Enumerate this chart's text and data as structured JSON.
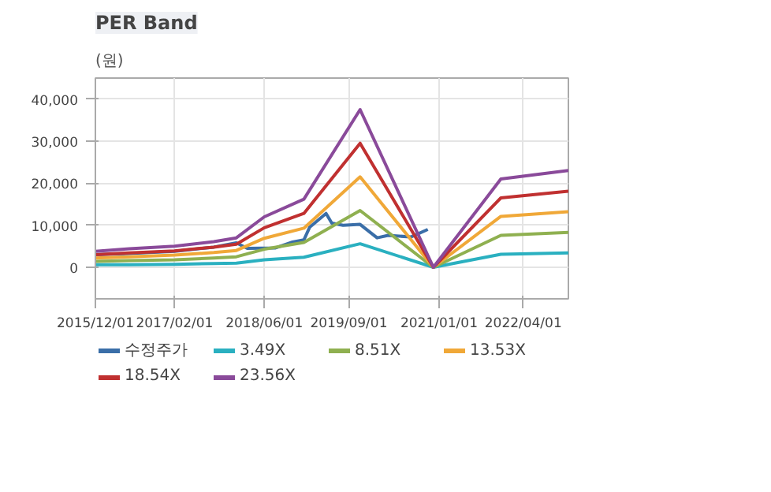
{
  "chart_data": {
    "type": "line",
    "title": "PER Band",
    "ylabel": "(원)",
    "x": [
      "2015-12-01",
      "2016-06-01",
      "2017-02-01",
      "2017-09-01",
      "2018-01-01",
      "2018-06-01",
      "2019-01-01",
      "2019-11-01",
      "2020-12-01",
      "2021-12-01",
      "2022-12-01"
    ],
    "series": [
      {
        "name": "수정주가",
        "color": "#3a6ea8",
        "x": [
          "2015-12-01",
          "2016-06-01",
          "2017-02-01",
          "2017-09-01",
          "2018-01-01",
          "2018-03-01",
          "2018-08-01",
          "2018-11-01",
          "2019-01-01",
          "2019-02-01",
          "2019-05-01",
          "2019-06-01",
          "2019-08-01",
          "2019-11-01",
          "2020-02-01",
          "2020-04-01",
          "2020-08-01",
          "2020-11-01"
        ],
        "values": [
          3000,
          3300,
          3800,
          4800,
          5800,
          4500,
          4600,
          6000,
          6500,
          9500,
          12800,
          10500,
          10000,
          10200,
          7000,
          7600,
          7200,
          9000
        ]
      },
      {
        "name": "3.49X",
        "color": "#2ab0c0",
        "values": [
          600,
          600,
          700,
          900,
          1000,
          1800,
          2400,
          5600,
          0,
          3100,
          3400
        ]
      },
      {
        "name": "8.51X",
        "color": "#8fb050",
        "values": [
          1400,
          1600,
          1800,
          2200,
          2500,
          4300,
          5900,
          13500,
          0,
          7600,
          8300
        ]
      },
      {
        "name": "13.53X",
        "color": "#f0a838",
        "values": [
          2200,
          2500,
          2900,
          3500,
          4000,
          6900,
          9300,
          21500,
          0,
          12100,
          13200
        ]
      },
      {
        "name": "18.54X",
        "color": "#c03030",
        "values": [
          3000,
          3400,
          3900,
          4800,
          5500,
          9400,
          12800,
          29500,
          0,
          16500,
          18100
        ]
      },
      {
        "name": "23.56X",
        "color": "#8a4a9a",
        "values": [
          3800,
          4400,
          5000,
          6100,
          7000,
          12000,
          16200,
          37500,
          0,
          21000,
          23000
        ]
      }
    ],
    "xlim": [
      "2015-12-01",
      "2022-12-01"
    ],
    "xticks": [
      {
        "value": "2015-12-01",
        "label": "2015/12/01"
      },
      {
        "value": "2017-02-01",
        "label": "2017/02/01"
      },
      {
        "value": "2018-06-01",
        "label": "2018/06/01"
      },
      {
        "value": "2019-09-01",
        "label": "2019/09/01"
      },
      {
        "value": "2021-01-01",
        "label": "2021/01/01"
      },
      {
        "value": "2022-04-01",
        "label": "2022/04/01"
      }
    ],
    "ylim": [
      -7500,
      45000
    ],
    "yticks": [
      0,
      {
        "value": 10000,
        "label": "10,000"
      },
      {
        "value": 20000,
        "label": "20,000"
      },
      {
        "value": 30000,
        "label": "30,000"
      },
      {
        "value": 40000,
        "label": "40,000"
      }
    ],
    "grid": true,
    "legend": "bottom",
    "marker": "none",
    "line_style": "solid"
  }
}
